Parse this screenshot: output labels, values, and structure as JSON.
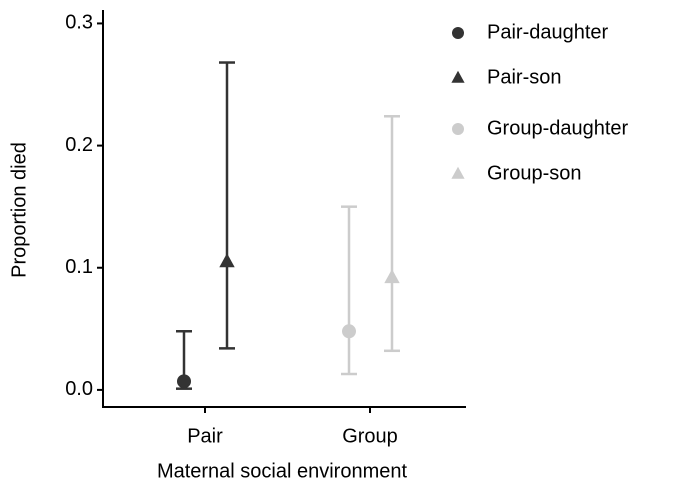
{
  "chart_data": {
    "type": "pointrange",
    "x_label": "Maternal social environment",
    "y_label": "Proportion died",
    "categories": [
      "Pair",
      "Group"
    ],
    "ylim": [
      -0.014,
      0.311
    ],
    "yticks": [
      {
        "value": 0,
        "label": "0.0"
      },
      0.1,
      0.2,
      0.3
    ],
    "series": [
      {
        "name": "Pair-daughter",
        "color": "#333333",
        "shape": "circle",
        "values": [
          0.007,
          null
        ],
        "lower": [
          0.001,
          null
        ],
        "upper": [
          0.048,
          null
        ]
      },
      {
        "name": "Pair-son",
        "color": "#333333",
        "shape": "triangle",
        "values": [
          0.105,
          null
        ],
        "lower": [
          0.034,
          null
        ],
        "upper": [
          0.268,
          null
        ]
      },
      {
        "name": "Group-daughter",
        "color": "#cccccc",
        "shape": "circle",
        "values": [
          null,
          0.048
        ],
        "lower": [
          null,
          0.013
        ],
        "upper": [
          null,
          0.15
        ]
      },
      {
        "name": "Group-son",
        "color": "#cccccc",
        "shape": "triangle",
        "values": [
          null,
          0.092
        ],
        "lower": [
          null,
          0.032
        ],
        "upper": [
          null,
          0.224
        ]
      }
    ]
  }
}
